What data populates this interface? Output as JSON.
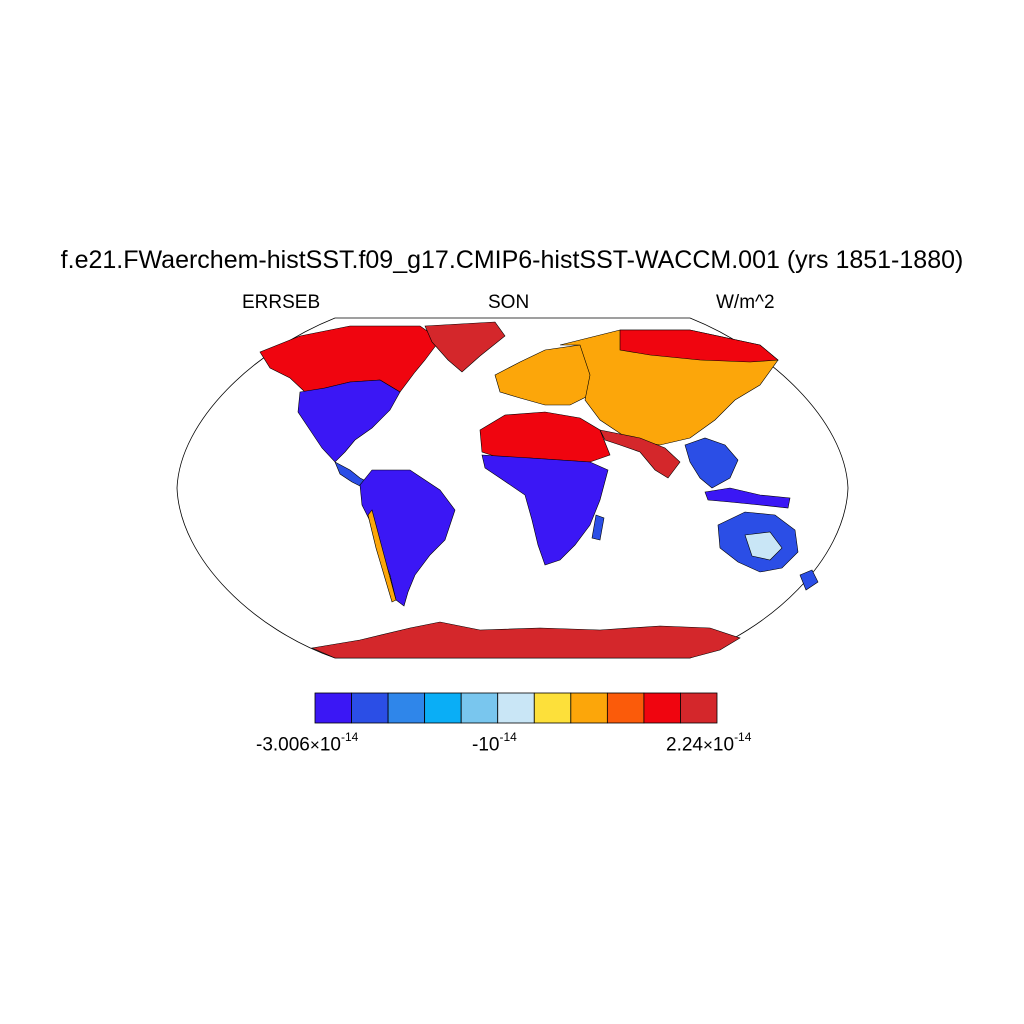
{
  "title": "f.e21.FWaerchem-histSST.f09_g17.CMIP6-histSST-WACCM.001 (yrs 1851-1880)",
  "left_label": "ERRSEB",
  "center_label": "SON",
  "right_label": "W/m^2",
  "colorbar": {
    "colors": [
      "#3b17f5",
      "#2b4ee6",
      "#2f86ea",
      "#0aaef6",
      "#79c6ee",
      "#c9e6f6",
      "#fde03a",
      "#fca60a",
      "#fb5b0a",
      "#f0050f",
      "#d4272b"
    ],
    "labels": [
      {
        "base": "-3.006",
        "times": "×",
        "pow": "10",
        "exp": "-14"
      },
      {
        "base": "",
        "times": "",
        "pow": "-10",
        "exp": "-14"
      },
      {
        "base": "2.24",
        "times": "×",
        "pow": "10",
        "exp": "-14"
      }
    ]
  },
  "map_colors": {
    "land_negative": "#3b17f5",
    "land_negative_alt": "#2b4ee6",
    "land_positive": "#f0050f",
    "land_positive_alt": "#d4272b",
    "land_mid": "#fca60a",
    "land_light": "#c9e6f6",
    "outline": "#000000"
  }
}
